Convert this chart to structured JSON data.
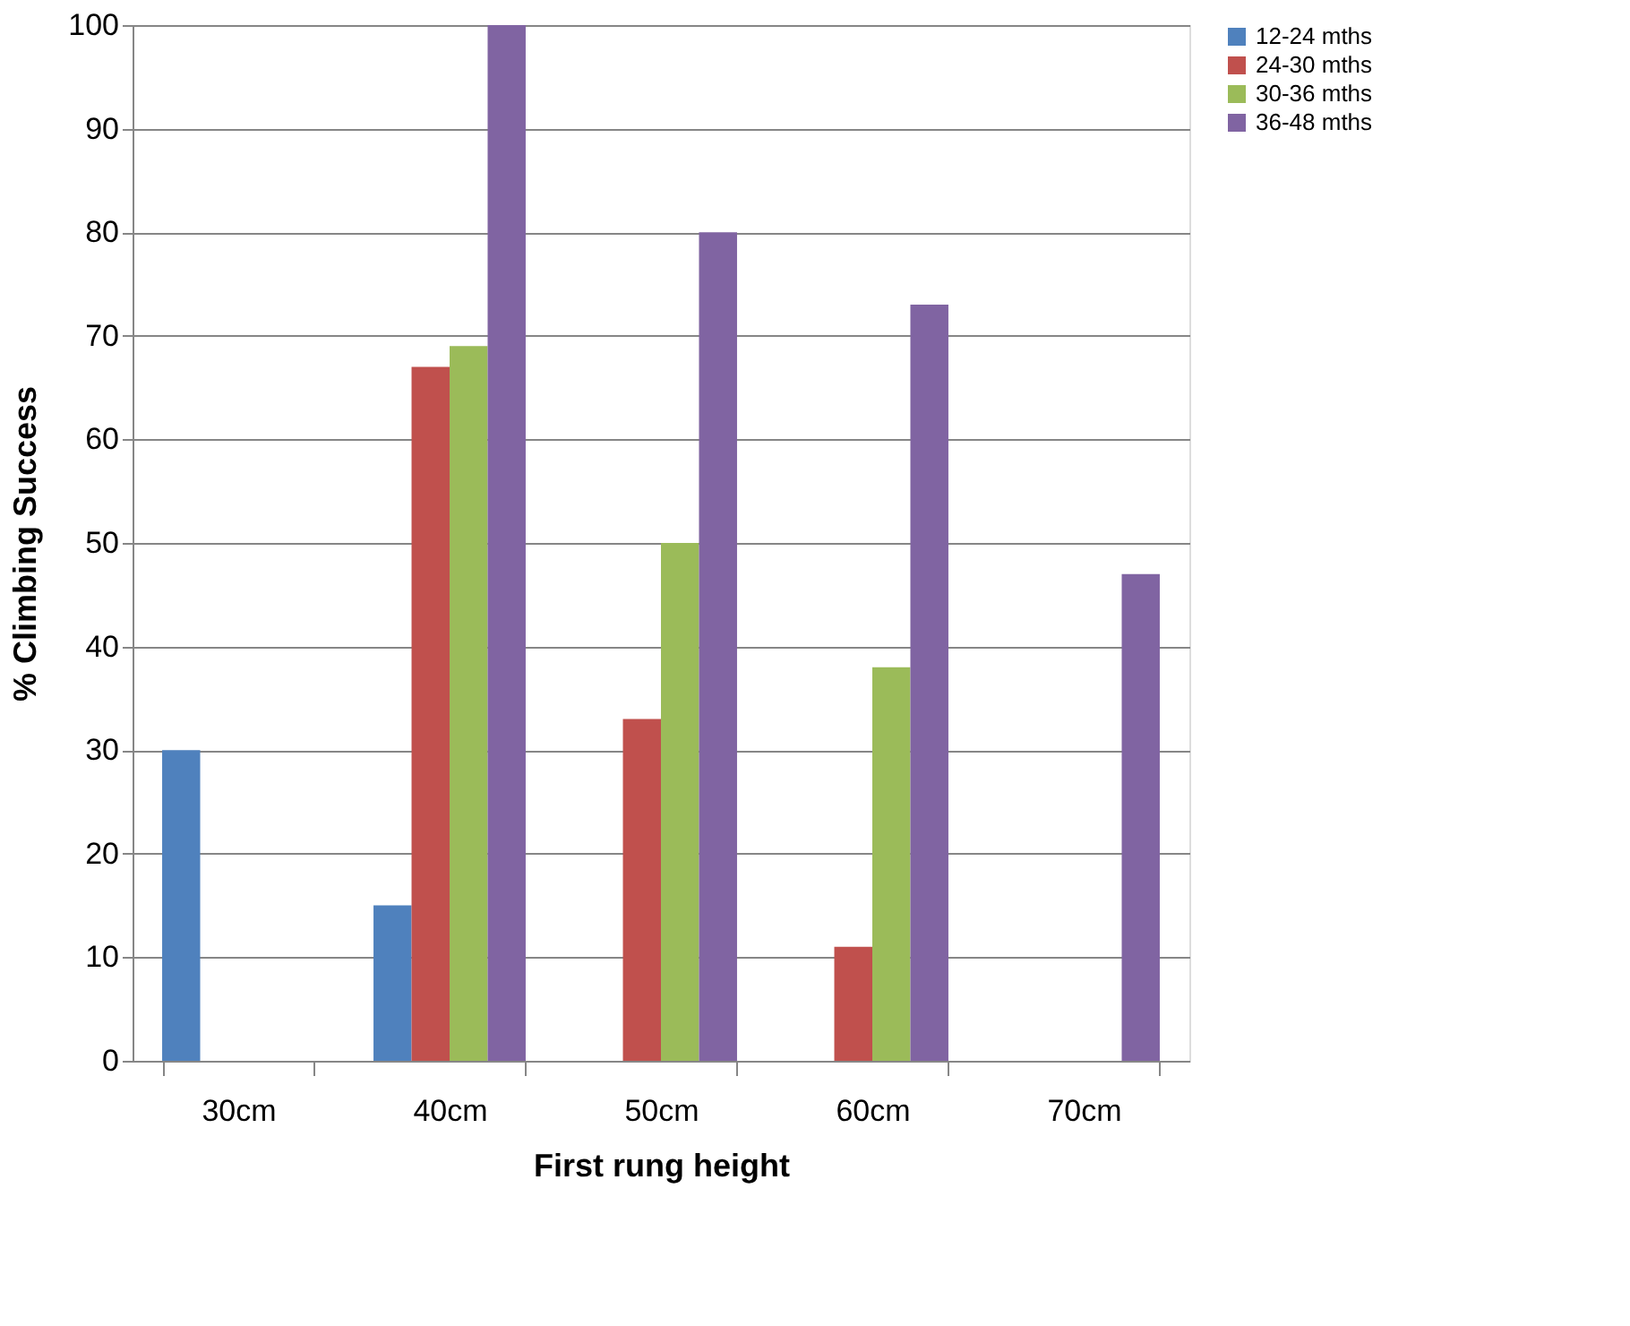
{
  "chart_data": {
    "type": "bar",
    "xlabel": "First rung height",
    "ylabel": "% Climbing Success",
    "categories": [
      "30cm",
      "40cm",
      "50cm",
      "60cm",
      "70cm"
    ],
    "series": [
      {
        "name": "12-24  mths",
        "color": "#4f81bd",
        "values": [
          30,
          15,
          null,
          null,
          null
        ]
      },
      {
        "name": "24-30  mths",
        "color": "#c0504d",
        "values": [
          null,
          67,
          33,
          11,
          null
        ]
      },
      {
        "name": "30-36  mths",
        "color": "#9bbb59",
        "values": [
          null,
          69,
          50,
          38,
          null
        ]
      },
      {
        "name": "36-48  mths",
        "color": "#8064a2",
        "values": [
          null,
          100,
          80,
          73,
          47
        ]
      }
    ],
    "ylim": [
      0,
      100
    ],
    "yticks": [
      0,
      10,
      20,
      30,
      40,
      50,
      60,
      70,
      80,
      90,
      100
    ],
    "grid": "y",
    "legend": "right"
  }
}
